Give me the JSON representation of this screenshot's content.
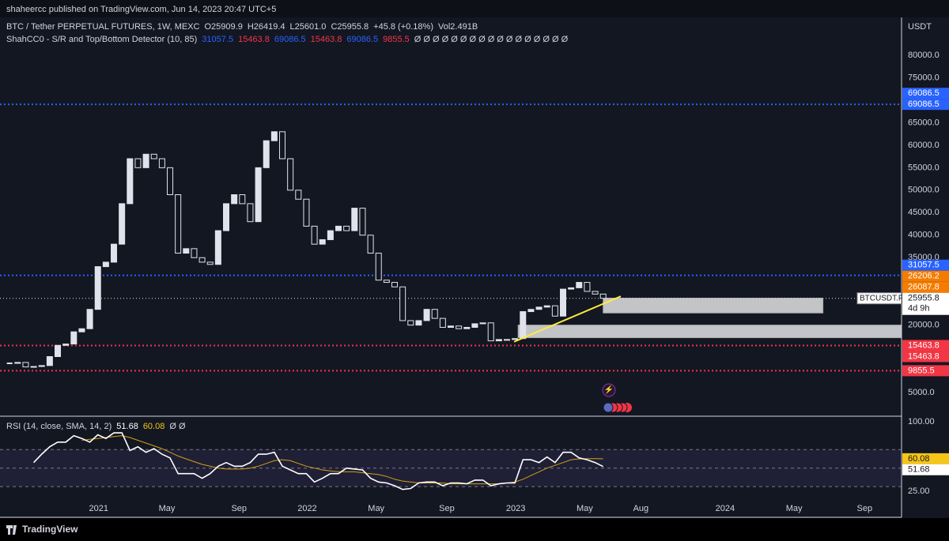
{
  "header": {
    "publisher": "shaheercc published on TradingView.com, Jun 14, 2023 20:47 UTC+5"
  },
  "footer": {
    "brand": "TradingView"
  },
  "legend": {
    "line1": [
      "BTC / Tether PERPETUAL FUTURES, 1W, MEXC",
      "O25909.9",
      "H26419.4",
      "L25601.0",
      "C25955.8",
      "+45.8 (+0.18%)",
      "Vol2.491B"
    ],
    "line2": [
      {
        "text": "ShahCC0 - S/R and Top/Bottom Detector (10, 85)",
        "color": "#d1d4dc"
      },
      {
        "text": "31057.5",
        "color": "#2962ff"
      },
      {
        "text": "15463.8",
        "color": "#f23645"
      },
      {
        "text": "69086.5",
        "color": "#2962ff"
      },
      {
        "text": "15463.8",
        "color": "#f23645"
      },
      {
        "text": "69086.5",
        "color": "#2962ff"
      },
      {
        "text": "9855.5",
        "color": "#f23645"
      },
      {
        "text": "Ø Ø Ø Ø Ø Ø Ø Ø Ø Ø Ø Ø Ø Ø Ø Ø Ø",
        "color": "#d1d4dc"
      }
    ]
  },
  "chart_data": {
    "type": "candlestick",
    "currency": "USDT",
    "xlim": [
      -1.2,
      111.2
    ],
    "ylim": [
      -260,
      88430
    ],
    "xticks": [
      {
        "value": 11.1,
        "label": "2021"
      },
      {
        "value": 19.6,
        "label": "May"
      },
      {
        "value": 28.6,
        "label": "Sep"
      },
      {
        "value": 37.1,
        "label": "2022"
      },
      {
        "value": 45.7,
        "label": "May"
      },
      {
        "value": 54.5,
        "label": "Sep"
      },
      {
        "value": 63.1,
        "label": "2023"
      },
      {
        "value": 71.7,
        "label": "May"
      },
      {
        "value": 78.7,
        "label": "Aug"
      },
      {
        "value": 89.2,
        "label": "2024"
      },
      {
        "value": 97.8,
        "label": "May"
      },
      {
        "value": 106.6,
        "label": "Sep"
      }
    ],
    "yticks": [
      {
        "value": 80000,
        "label": "80000.0"
      },
      {
        "value": 75000,
        "label": "75000.0"
      },
      {
        "value": 70000,
        "label": "70000.0"
      },
      {
        "value": 65000,
        "label": "65000.0"
      },
      {
        "value": 60000,
        "label": "60000.0"
      },
      {
        "value": 55000,
        "label": "55000.0"
      },
      {
        "value": 50000,
        "label": "50000.0"
      },
      {
        "value": 45000,
        "label": "45000.0"
      },
      {
        "value": 40000,
        "label": "40000.0"
      },
      {
        "value": 35000,
        "label": "35000.0"
      },
      {
        "value": 20000,
        "label": "20000.0"
      },
      {
        "value": 5000,
        "label": "5000.0"
      }
    ],
    "values": [
      11500,
      11700,
      10700,
      10800,
      11000,
      13000,
      15500,
      15800,
      18500,
      19200,
      23500,
      33000,
      34000,
      38000,
      47000,
      57000,
      55000,
      58000,
      57000,
      55000,
      49000,
      36000,
      37000,
      35000,
      34000,
      33500,
      41000,
      47000,
      49000,
      47000,
      43000,
      55000,
      61000,
      63000,
      57000,
      50000,
      48000,
      42000,
      38000,
      39000,
      41000,
      42000,
      41000,
      46000,
      40000,
      36000,
      30000,
      29500,
      28500,
      21000,
      20000,
      21000,
      23500,
      21500,
      19500,
      19800,
      19200,
      19500,
      20300,
      20500,
      16500,
      16800,
      16800,
      17000,
      23000,
      23500,
      24000,
      24300,
      22000,
      28000,
      28300,
      29500,
      27500,
      26900,
      25955.8
    ],
    "price_labels": [
      {
        "value": 69086.5,
        "color": "#2962ff",
        "dotted": true
      },
      {
        "value": 69086.5,
        "color": "#2962ff",
        "dotted": false
      },
      {
        "value": 31057.5,
        "color": "#2962ff",
        "dotted": true
      },
      {
        "value": 26206.2,
        "color": "#f57c00",
        "dotted": false
      },
      {
        "value": 26087.8,
        "color": "#f57c00",
        "dotted": false
      },
      {
        "value": 15463.8,
        "color": "#f23645",
        "dotted": true
      },
      {
        "value": 15463.8,
        "color": "#f23645",
        "dotted": false
      },
      {
        "value": 9855.5,
        "color": "#f23645",
        "dotted": true
      }
    ],
    "last": {
      "name": "BTCUSDT.P",
      "value": 25955.8,
      "countdown": "4d 9h"
    },
    "zones": [
      {
        "start": 74,
        "end": 101.4,
        "top": 26000,
        "bottom": 22700
      },
      {
        "start": 63.4,
        "end": 111.2,
        "top": 20000,
        "bottom": 17200
      }
    ],
    "trendline": {
      "x": [
        62.9,
        76.2
      ],
      "y": [
        16300,
        26400
      ],
      "color": "#ffeb3b"
    },
    "rsi": {
      "title": "RSI (14, close, SMA, 14, 2)",
      "value_label": "51.68",
      "ma_label": "60.08",
      "extra": "Ø Ø",
      "ylim": [
        19.9,
        106
      ],
      "yticks": [
        {
          "value": 100,
          "label": "100.00"
        },
        {
          "value": 25,
          "label": "25.00"
        }
      ],
      "bands": [
        70,
        50,
        30
      ],
      "values": [
        null,
        null,
        null,
        56,
        65,
        73,
        78,
        78,
        85,
        82,
        78,
        86,
        82,
        88,
        88,
        69,
        73,
        67,
        71,
        65,
        61,
        44,
        44,
        44,
        39,
        44,
        52,
        56,
        52,
        52,
        56,
        65,
        65,
        67,
        52,
        48,
        44,
        44,
        35,
        39,
        44,
        44,
        50,
        49,
        48,
        39,
        35,
        34,
        31,
        27,
        28,
        34,
        35,
        35,
        31,
        34,
        34,
        33,
        37,
        37,
        31,
        33,
        34,
        34,
        59,
        59,
        56,
        62,
        56,
        67,
        67,
        61,
        59,
        56,
        51.68
      ],
      "ma": [
        null,
        null,
        null,
        null,
        null,
        null,
        null,
        null,
        null,
        80,
        81,
        82,
        83,
        84,
        85,
        83,
        80,
        77,
        74,
        71,
        67,
        63,
        60,
        57,
        54,
        52,
        50,
        49,
        49,
        49,
        50,
        52,
        55,
        58,
        59,
        58,
        55,
        52,
        50,
        48,
        47,
        46,
        46,
        46,
        45,
        44,
        43,
        41,
        38,
        36,
        35,
        34,
        34,
        34,
        34,
        33,
        33,
        33,
        33,
        33,
        33,
        33,
        34,
        35,
        38,
        42,
        46,
        50,
        53,
        56,
        59,
        60,
        60.1,
        60.1,
        60.08
      ]
    }
  }
}
